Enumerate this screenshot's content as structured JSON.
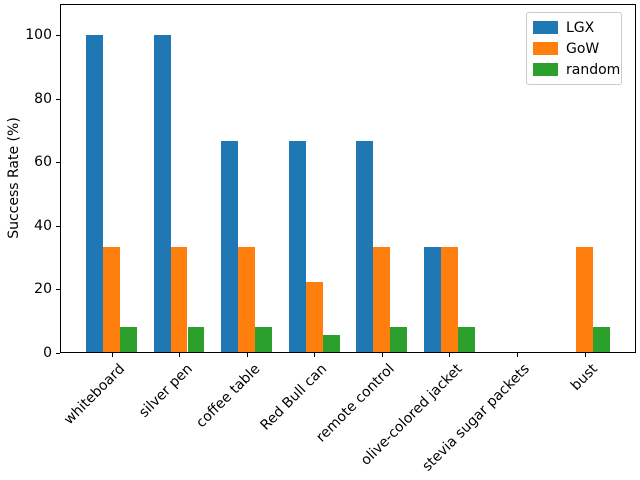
{
  "figure": {
    "background_color": "#ffffff",
    "axes_edge_color": "#000000",
    "legend_border_color": "#cccccc"
  },
  "chart_data": {
    "type": "bar",
    "title": "",
    "xlabel": "",
    "ylabel": "Success Rate (%)",
    "categories": [
      "whiteboard",
      "silver pen",
      "coffee table",
      "Red Bull can",
      "remote control",
      "olive-colored jacket",
      "stevia sugar packets",
      "bust"
    ],
    "series": [
      {
        "name": "LGX",
        "color": "#1f77b4",
        "values": [
          100,
          100,
          66.7,
          66.7,
          66.7,
          33.3,
          0,
          0
        ]
      },
      {
        "name": "GoW",
        "color": "#ff7f0e",
        "values": [
          33.3,
          33.3,
          33.3,
          22.2,
          33.3,
          33.3,
          0,
          33.3
        ]
      },
      {
        "name": "random",
        "color": "#2ca02c",
        "values": [
          8.3,
          8.3,
          8.3,
          5.6,
          8.3,
          8.3,
          0,
          8.3
        ]
      }
    ],
    "yticks": [
      0,
      20,
      40,
      60,
      80,
      100
    ],
    "ylim": [
      0,
      109.7
    ],
    "grid": false,
    "legend_position": "upper right",
    "x_tick_rotation": 45,
    "bar_group_width": 0.75
  }
}
